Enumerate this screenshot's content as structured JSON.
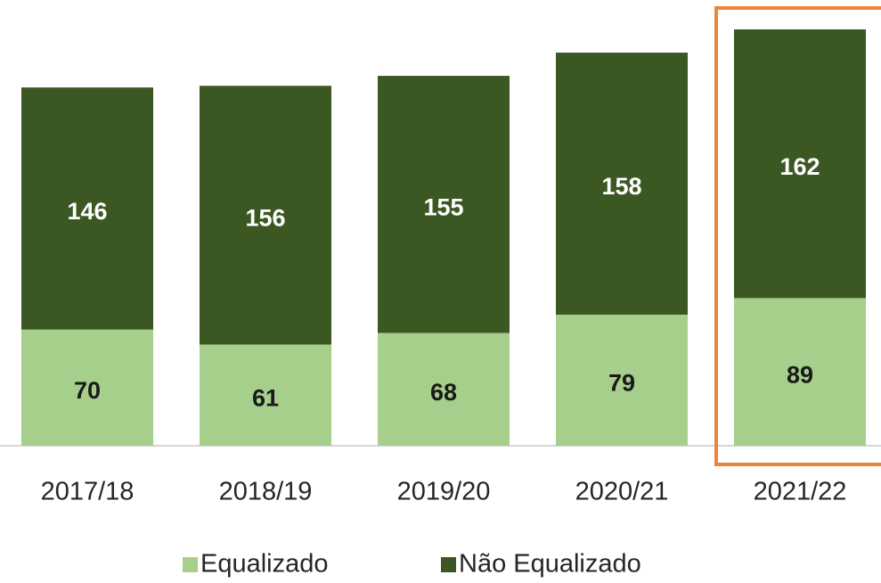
{
  "chart_data": {
    "type": "stacked_bar",
    "categories": [
      "2017/18",
      "2018/19",
      "2019/20",
      "2020/21",
      "2021/22"
    ],
    "series": [
      {
        "name": "Equalizado",
        "color": "#a6cf8b",
        "values": [
          70,
          61,
          68,
          79,
          89
        ]
      },
      {
        "name": "Não Equalizado",
        "color": "#3b5823",
        "values": [
          146,
          156,
          155,
          158,
          162
        ]
      }
    ]
  }
}
